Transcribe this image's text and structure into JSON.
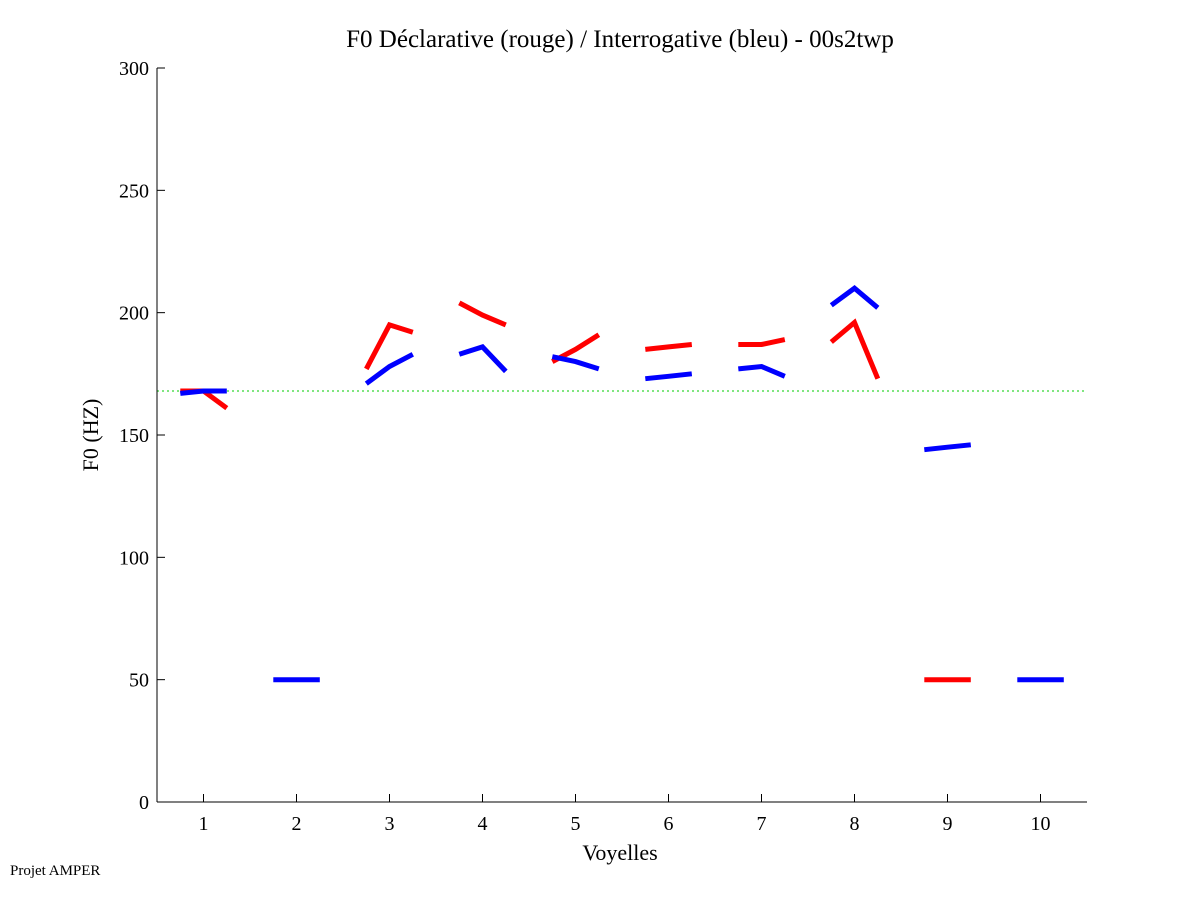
{
  "chart_data": {
    "type": "line",
    "title": "F0 Déclarative (rouge) / Interrogative (bleu) - 00s2twp",
    "xlabel": "Voyelles",
    "ylabel": "F0 (HZ)",
    "xlim": [
      0.5,
      10.5
    ],
    "ylim": [
      0,
      300
    ],
    "xticks": [
      "1",
      "2",
      "3",
      "4",
      "5",
      "6",
      "7",
      "8",
      "9",
      "10"
    ],
    "yticks": [
      "0",
      "50",
      "100",
      "150",
      "200",
      "250",
      "300"
    ],
    "reference_line": {
      "y": 168,
      "style": "dotted",
      "color": "#00cc00"
    },
    "series": [
      {
        "name": "Déclarative",
        "color": "#ff0000",
        "segments": [
          {
            "vowel": 1,
            "points": [
              [
                0.75,
                168
              ],
              [
                1.0,
                168
              ],
              [
                1.25,
                161
              ]
            ]
          },
          {
            "vowel": 3,
            "points": [
              [
                2.75,
                177
              ],
              [
                3.0,
                195
              ],
              [
                3.25,
                192
              ]
            ]
          },
          {
            "vowel": 4,
            "points": [
              [
                3.75,
                204
              ],
              [
                4.0,
                199
              ],
              [
                4.25,
                195
              ]
            ]
          },
          {
            "vowel": 5,
            "points": [
              [
                4.75,
                180
              ],
              [
                5.0,
                185
              ],
              [
                5.25,
                191
              ]
            ]
          },
          {
            "vowel": 6,
            "points": [
              [
                5.75,
                185
              ],
              [
                6.0,
                186
              ],
              [
                6.25,
                187
              ]
            ]
          },
          {
            "vowel": 7,
            "points": [
              [
                6.75,
                187
              ],
              [
                7.0,
                187
              ],
              [
                7.25,
                189
              ]
            ]
          },
          {
            "vowel": 8,
            "points": [
              [
                7.75,
                188
              ],
              [
                8.0,
                196
              ],
              [
                8.25,
                173
              ]
            ]
          },
          {
            "vowel": 9,
            "points": [
              [
                8.75,
                50
              ],
              [
                9.0,
                50
              ],
              [
                9.25,
                50
              ]
            ]
          }
        ]
      },
      {
        "name": "Interrogative",
        "color": "#0000ff",
        "segments": [
          {
            "vowel": 1,
            "points": [
              [
                0.75,
                167
              ],
              [
                1.0,
                168
              ],
              [
                1.25,
                168
              ]
            ]
          },
          {
            "vowel": 2,
            "points": [
              [
                1.75,
                50
              ],
              [
                2.0,
                50
              ],
              [
                2.25,
                50
              ]
            ]
          },
          {
            "vowel": 3,
            "points": [
              [
                2.75,
                171
              ],
              [
                3.0,
                178
              ],
              [
                3.25,
                183
              ]
            ]
          },
          {
            "vowel": 4,
            "points": [
              [
                3.75,
                183
              ],
              [
                4.0,
                186
              ],
              [
                4.25,
                176
              ]
            ]
          },
          {
            "vowel": 5,
            "points": [
              [
                4.75,
                182
              ],
              [
                5.0,
                180
              ],
              [
                5.25,
                177
              ]
            ]
          },
          {
            "vowel": 6,
            "points": [
              [
                5.75,
                173
              ],
              [
                6.0,
                174
              ],
              [
                6.25,
                175
              ]
            ]
          },
          {
            "vowel": 7,
            "points": [
              [
                6.75,
                177
              ],
              [
                7.0,
                178
              ],
              [
                7.25,
                174
              ]
            ]
          },
          {
            "vowel": 8,
            "points": [
              [
                7.75,
                203
              ],
              [
                8.0,
                210
              ],
              [
                8.25,
                202
              ]
            ]
          },
          {
            "vowel": 9,
            "points": [
              [
                8.75,
                144
              ],
              [
                9.0,
                145
              ],
              [
                9.25,
                146
              ]
            ]
          },
          {
            "vowel": 10,
            "points": [
              [
                9.75,
                50
              ],
              [
                10.0,
                50
              ],
              [
                10.25,
                50
              ]
            ]
          }
        ]
      }
    ]
  },
  "footer": {
    "text": "Projet AMPER"
  }
}
